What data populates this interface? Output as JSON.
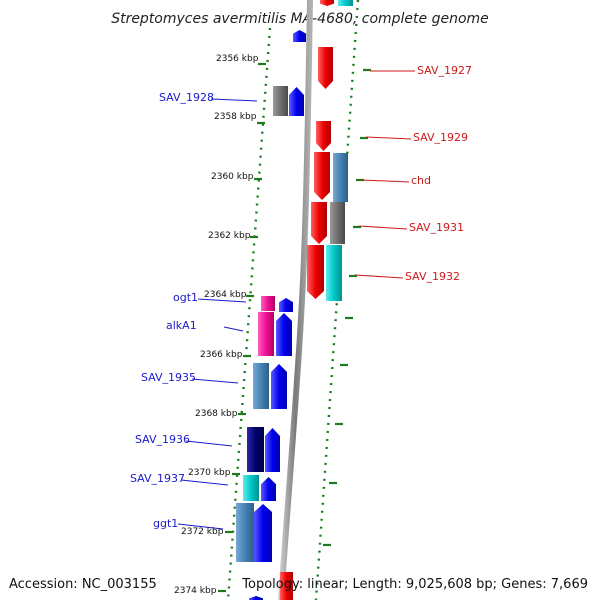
{
  "title": "Streptomyces avermitilis MA-4680, complete genome",
  "footer": {
    "accession": "Accession: NC_003155",
    "info": "Topology: linear; Length: 9,025,608 bp; Genes: 7,669"
  },
  "kbp_ticks": [
    "2356 kbp",
    "2358 kbp",
    "2360 kbp",
    "2362 kbp",
    "2364 kbp",
    "2366 kbp",
    "2368 kbp",
    "2370 kbp",
    "2372 kbp",
    "2374 kbp"
  ],
  "gene_labels_left": [
    "SAV_1928",
    "ogt1",
    "alkA1",
    "SAV_1935",
    "SAV_1936",
    "SAV_1937",
    "ggt1"
  ],
  "gene_labels_right": [
    "SAV_1927",
    "SAV_1929",
    "chd",
    "SAV_1931",
    "SAV_1932"
  ],
  "colors": {
    "forward_gene": "#0000ee",
    "reverse_gene": "#ee0000",
    "cog_gray": "#6f6f6f",
    "cog_steelblue": "#4682b4",
    "cog_cyan": "#00c8c8",
    "cog_magenta": "#ee1090",
    "cog_navy": "#00006e",
    "axis": "#888888",
    "tick": "#1f7a1f"
  }
}
